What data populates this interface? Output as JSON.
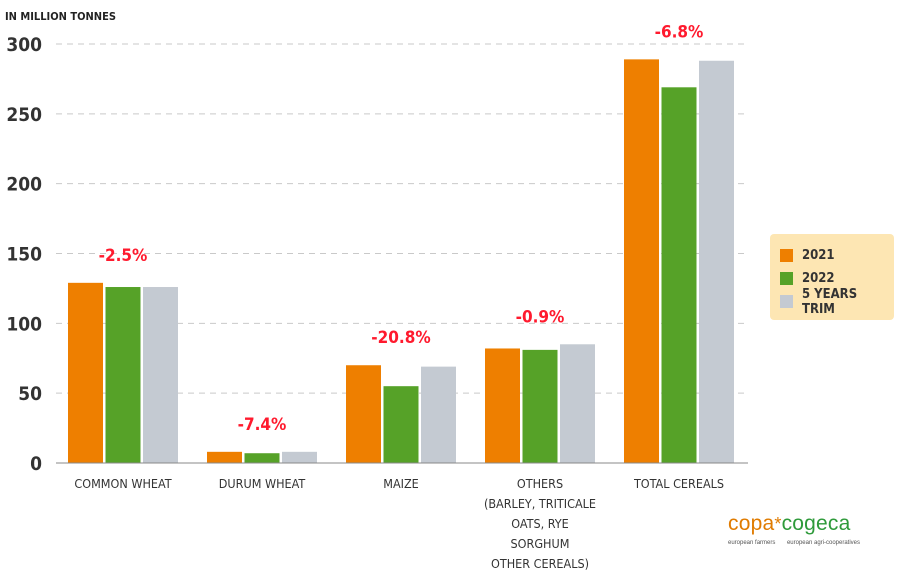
{
  "chart_data": {
    "type": "bar",
    "units_label": "IN MILLION TONNES",
    "ylim": [
      0,
      300
    ],
    "yticks": [
      0,
      50,
      100,
      150,
      200,
      250,
      300
    ],
    "grid": true,
    "legend_position": "right",
    "categories": [
      {
        "lines": [
          "COMMON WHEAT"
        ]
      },
      {
        "lines": [
          "DURUM WHEAT"
        ]
      },
      {
        "lines": [
          "MAIZE"
        ]
      },
      {
        "lines": [
          "OTHERS",
          "(BARLEY, TRITICALE",
          "OATS, RYE",
          "SORGHUM",
          "OTHER CEREALS)"
        ]
      },
      {
        "lines": [
          "TOTAL CEREALS"
        ]
      }
    ],
    "series": [
      {
        "name": "2021",
        "color": "#ee7f00",
        "values": [
          129,
          8,
          70,
          82,
          289
        ]
      },
      {
        "name": "2022",
        "color": "#56a228",
        "values": [
          126,
          7,
          55,
          81,
          269
        ]
      },
      {
        "name": "5 YEARS TRIM",
        "color": "#c4cad2",
        "values": [
          126,
          8,
          69,
          85,
          288
        ]
      }
    ],
    "annotations": [
      "-2.5%",
      "-7.4%",
      "-20.8%",
      "-0.9%",
      "-6.8%"
    ]
  },
  "logo": {
    "copa": "copa",
    "star": "*",
    "cogeca": "cogeca",
    "sub_left": "european farmers",
    "sub_right": "european agri-cooperatives"
  }
}
